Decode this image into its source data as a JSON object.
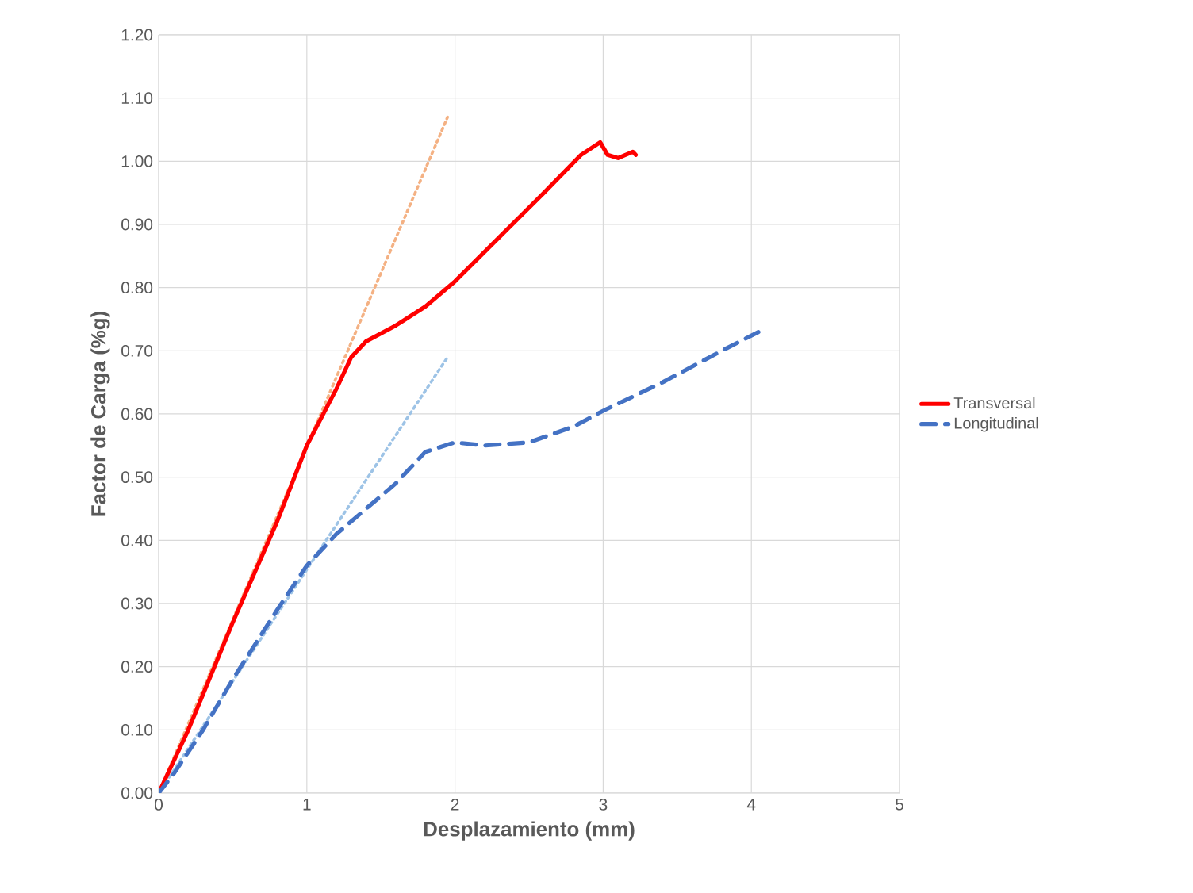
{
  "chart_data": {
    "type": "line",
    "xlabel": "Desplazamiento (mm)",
    "ylabel": "Factor de Carga (%g)",
    "xlim": [
      0,
      5
    ],
    "ylim": [
      0,
      1.2
    ],
    "xticks": [
      0,
      1,
      2,
      3,
      4,
      5
    ],
    "yticks": [
      {
        "value": 0,
        "label": "0.00"
      },
      {
        "value": 0.1,
        "label": "0.10"
      },
      {
        "value": 0.2,
        "label": "0.20"
      },
      {
        "value": 0.3,
        "label": "0.30"
      },
      {
        "value": 0.4,
        "label": "0.40"
      },
      {
        "value": 0.5,
        "label": "0.50"
      },
      {
        "value": 0.6,
        "label": "0.60"
      },
      {
        "value": 0.7,
        "label": "0.70"
      },
      {
        "value": 0.8,
        "label": "0.80"
      },
      {
        "value": 0.9,
        "label": "0.90"
      },
      {
        "value": 1.0,
        "label": "1.00"
      },
      {
        "value": 1.1,
        "label": "1.10"
      },
      {
        "value": 1.2,
        "label": "1.20"
      }
    ],
    "grid": true,
    "legend": "right",
    "marker": "none",
    "series": [
      {
        "name": "Transversal",
        "color": "#ff0000",
        "line_style": "solid",
        "x": [
          0,
          0.2,
          0.5,
          0.8,
          1.0,
          1.2,
          1.3,
          1.4,
          1.6,
          1.8,
          2.0,
          2.3,
          2.6,
          2.85,
          2.98,
          3.03,
          3.1,
          3.2,
          3.22
        ],
        "values": [
          0,
          0.1,
          0.27,
          0.43,
          0.55,
          0.64,
          0.69,
          0.715,
          0.74,
          0.77,
          0.81,
          0.88,
          0.95,
          1.01,
          1.03,
          1.01,
          1.005,
          1.015,
          1.01
        ]
      },
      {
        "name": "Longitudinal",
        "color": "#4472c4",
        "line_style": "dashed",
        "x": [
          0,
          0.1,
          0.3,
          0.5,
          0.8,
          1.0,
          1.2,
          1.4,
          1.6,
          1.8,
          2.0,
          2.2,
          2.5,
          2.8,
          3.0,
          3.4,
          3.8,
          4.05
        ],
        "values": [
          0,
          0.03,
          0.1,
          0.18,
          0.29,
          0.36,
          0.41,
          0.45,
          0.49,
          0.54,
          0.555,
          0.55,
          0.555,
          0.58,
          0.605,
          0.65,
          0.7,
          0.73
        ]
      },
      {
        "color": "#f4b183",
        "line_style": "dotted",
        "x": [
          0,
          1.95
        ],
        "values": [
          0,
          1.07
        ]
      },
      {
        "color": "#9dc3e6",
        "line_style": "dotted",
        "x": [
          0,
          1.95
        ],
        "values": [
          0,
          0.69
        ]
      }
    ]
  }
}
